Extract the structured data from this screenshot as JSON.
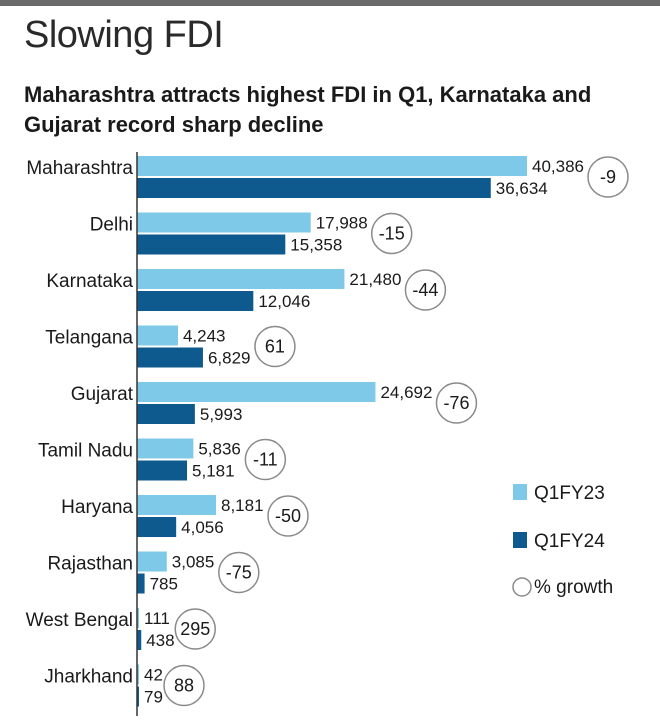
{
  "header": {
    "title": "Slowing FDI",
    "subtitle": "Maharashtra attracts highest FDI in Q1, Karnataka and Gujarat record sharp decline"
  },
  "colors": {
    "q1fy23": "#7ec8e8",
    "q1fy24": "#0e5a8e",
    "axis": "#333333",
    "circle": "#8a8a8a"
  },
  "chart_data": {
    "type": "bar",
    "orientation": "horizontal",
    "title": "Slowing FDI",
    "subtitle": "Maharashtra attracts highest FDI in Q1, Karnataka and Gujarat record sharp decline",
    "categories": [
      "Maharashtra",
      "Delhi",
      "Karnataka",
      "Telangana",
      "Gujarat",
      "Tamil Nadu",
      "Haryana",
      "Rajasthan",
      "West Bengal",
      "Jharkhand"
    ],
    "series": [
      {
        "name": "Q1FY23",
        "values": [
          40386,
          17988,
          21480,
          4243,
          24692,
          5836,
          8181,
          3085,
          111,
          42
        ],
        "labels": [
          "40,386",
          "17,988",
          "21,480",
          "4,243",
          "24,692",
          "5,836",
          "8,181",
          "3,085",
          "111",
          "42"
        ]
      },
      {
        "name": "Q1FY24",
        "values": [
          36634,
          15358,
          12046,
          6829,
          5993,
          5181,
          4056,
          785,
          438,
          79
        ],
        "labels": [
          "36,634",
          "15,358",
          "12,046",
          "6,829",
          "5,993",
          "5,181",
          "4,056",
          "785",
          "438",
          "79"
        ]
      }
    ],
    "growth": {
      "name": "% growth",
      "values": [
        "-9",
        "-15",
        "-44",
        "61",
        "-76",
        "-11",
        "-50",
        "-75",
        "295",
        "88"
      ]
    },
    "xlim": [
      0,
      45000
    ],
    "grid": false,
    "legend": "right"
  }
}
